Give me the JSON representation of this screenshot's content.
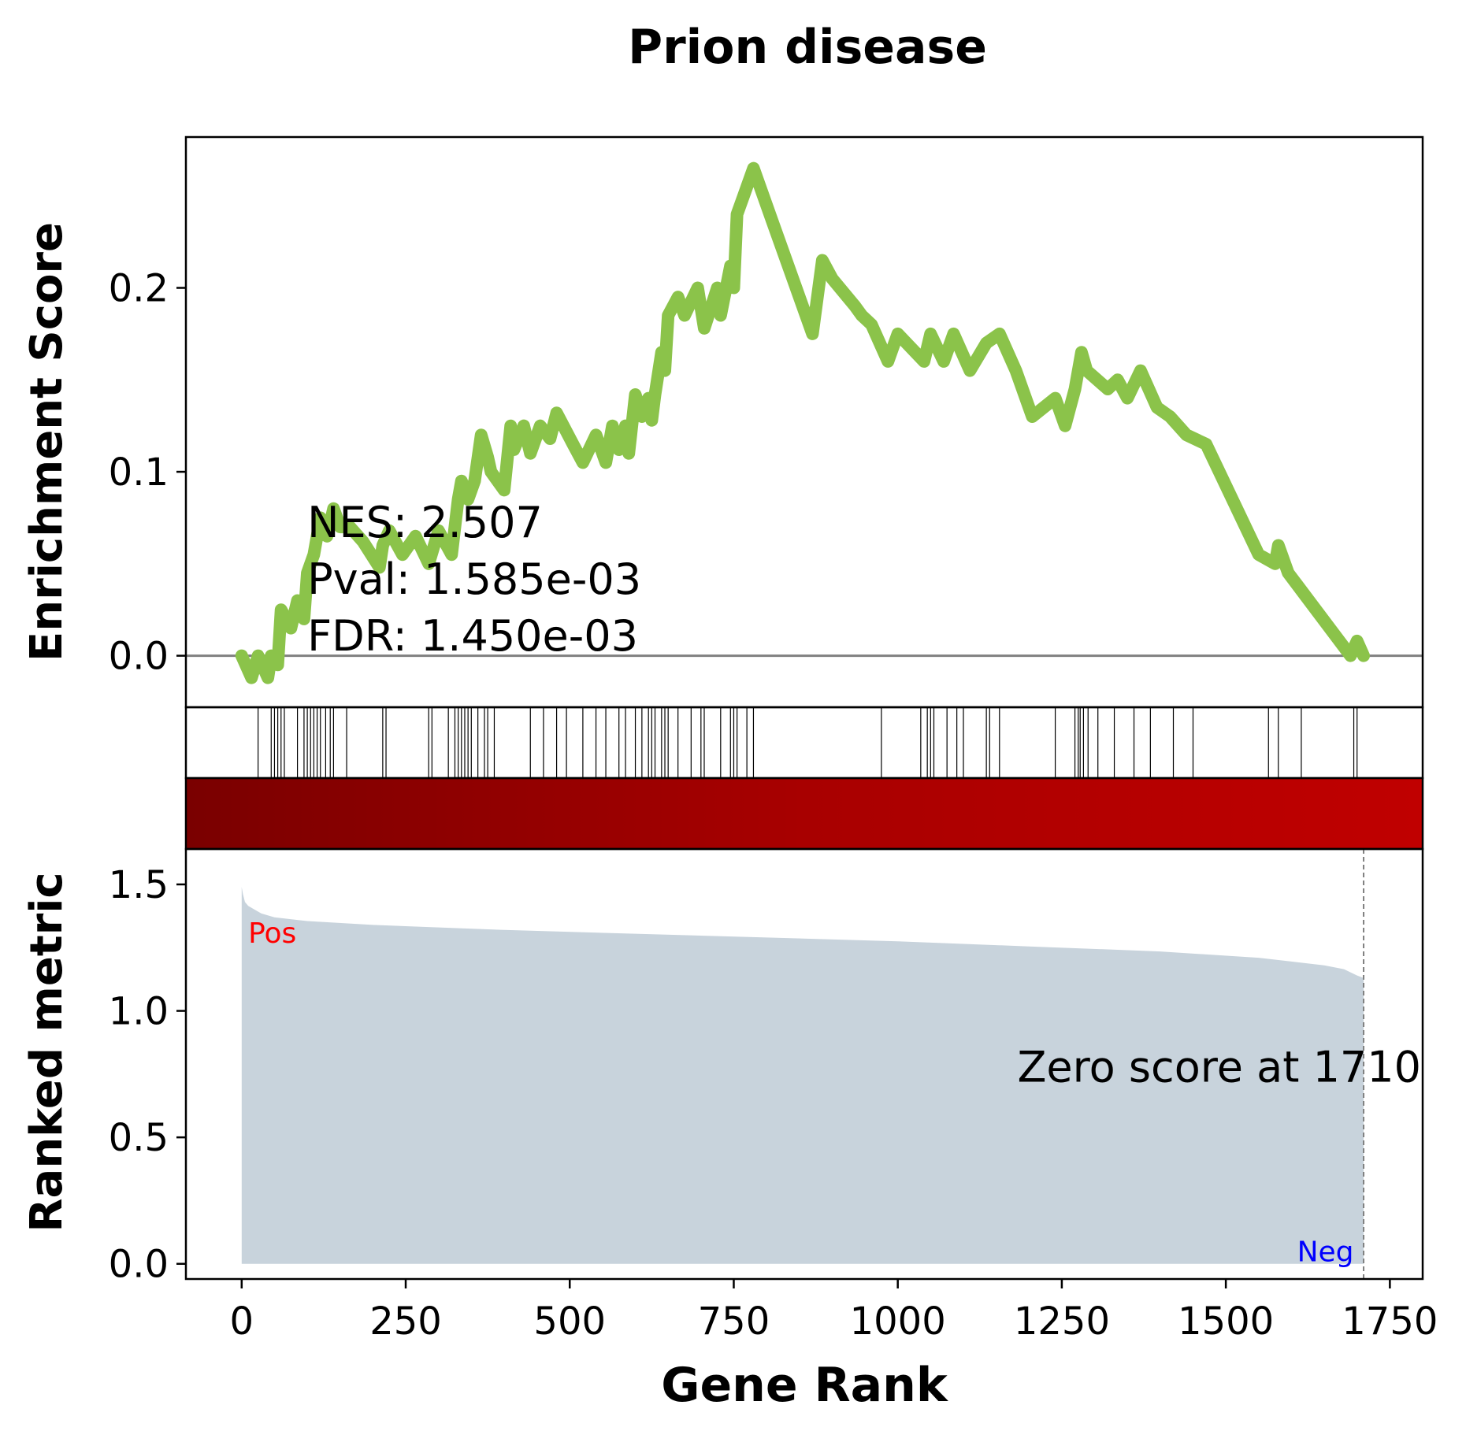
{
  "chart_data": {
    "type": "line",
    "title": "Prion disease",
    "xlabel": "Gene Rank",
    "xlim": [
      -85,
      1800
    ],
    "xticks": [
      0,
      250,
      500,
      750,
      1000,
      1250,
      1500,
      1750
    ],
    "top_panel": {
      "ylabel": "Enrichment Score",
      "ylim": [
        -0.028,
        0.282
      ],
      "yticks": [
        0.0,
        0.1,
        0.2
      ],
      "ytick_labels": [
        "0.0",
        "0.1",
        "0.2"
      ],
      "line_color": "#8bc34a",
      "zero_line_color": "#808080",
      "series": {
        "x": [
          0,
          15,
          25,
          40,
          45,
          55,
          60,
          75,
          85,
          95,
          100,
          110,
          120,
          130,
          140,
          150,
          165,
          185,
          210,
          215,
          225,
          245,
          265,
          285,
          300,
          320,
          330,
          335,
          345,
          355,
          365,
          375,
          380,
          400,
          410,
          415,
          430,
          440,
          455,
          470,
          480,
          505,
          520,
          540,
          555,
          565,
          575,
          585,
          590,
          600,
          610,
          620,
          625,
          630,
          640,
          645,
          650,
          665,
          675,
          695,
          705,
          725,
          730,
          745,
          750,
          755,
          765,
          780,
          810,
          840,
          870,
          885,
          900,
          935,
          945,
          960,
          985,
          1000,
          1040,
          1050,
          1070,
          1085,
          1110,
          1135,
          1155,
          1180,
          1205,
          1240,
          1255,
          1270,
          1280,
          1288,
          1320,
          1335,
          1350,
          1370,
          1395,
          1415,
          1440,
          1470,
          1550,
          1575,
          1580,
          1595,
          1690,
          1700,
          1710
        ],
        "y": [
          0.0,
          -0.012,
          0.0,
          -0.012,
          0.0,
          -0.005,
          0.025,
          0.015,
          0.03,
          0.02,
          0.045,
          0.055,
          0.075,
          0.065,
          0.08,
          0.07,
          0.07,
          0.062,
          0.048,
          0.06,
          0.068,
          0.055,
          0.065,
          0.05,
          0.068,
          0.055,
          0.085,
          0.095,
          0.085,
          0.095,
          0.12,
          0.108,
          0.1,
          0.09,
          0.125,
          0.112,
          0.125,
          0.11,
          0.125,
          0.118,
          0.132,
          0.115,
          0.105,
          0.12,
          0.105,
          0.125,
          0.112,
          0.125,
          0.11,
          0.142,
          0.13,
          0.14,
          0.128,
          0.142,
          0.165,
          0.155,
          0.185,
          0.195,
          0.185,
          0.2,
          0.178,
          0.2,
          0.185,
          0.212,
          0.2,
          0.24,
          0.25,
          0.265,
          0.235,
          0.205,
          0.175,
          0.215,
          0.205,
          0.19,
          0.185,
          0.18,
          0.16,
          0.175,
          0.16,
          0.175,
          0.16,
          0.175,
          0.155,
          0.17,
          0.175,
          0.155,
          0.13,
          0.14,
          0.125,
          0.145,
          0.165,
          0.155,
          0.145,
          0.15,
          0.14,
          0.155,
          0.135,
          0.13,
          0.12,
          0.115,
          0.055,
          0.05,
          0.06,
          0.045,
          0.0,
          0.008,
          0.0
        ]
      },
      "annotations": [
        "NES: 2.507",
        "Pval: 1.585e-03",
        "FDR: 1.450e-03"
      ]
    },
    "hit_panel": {
      "hits": [
        25,
        45,
        50,
        55,
        60,
        65,
        85,
        95,
        100,
        105,
        110,
        115,
        120,
        128,
        135,
        140,
        160,
        215,
        220,
        285,
        290,
        315,
        325,
        330,
        335,
        340,
        345,
        350,
        360,
        370,
        375,
        385,
        440,
        460,
        480,
        495,
        520,
        540,
        555,
        575,
        585,
        600,
        610,
        620,
        625,
        630,
        640,
        645,
        650,
        665,
        685,
        700,
        705,
        730,
        745,
        750,
        755,
        770,
        780,
        975,
        1035,
        1045,
        1050,
        1055,
        1075,
        1090,
        1100,
        1135,
        1140,
        1155,
        1240,
        1270,
        1275,
        1278,
        1283,
        1290,
        1305,
        1330,
        1360,
        1385,
        1420,
        1450,
        1565,
        1580,
        1615,
        1695,
        1700
      ]
    },
    "gradient_bar": {
      "colors": [
        "#7a0000",
        "#a80000",
        "#c00000"
      ]
    },
    "bottom_panel": {
      "ylabel": "Ranked metric",
      "ylim": [
        -0.06,
        1.64
      ],
      "yticks": [
        0.0,
        0.5,
        1.0,
        1.5
      ],
      "ytick_labels": [
        "0.0",
        "0.5",
        "1.0",
        "1.5"
      ],
      "fill_color": "#c8d3dc",
      "series": {
        "x": [
          0,
          2,
          5,
          10,
          20,
          30,
          50,
          100,
          200,
          400,
          600,
          800,
          1000,
          1200,
          1400,
          1550,
          1600,
          1650,
          1680,
          1700,
          1710
        ],
        "y": [
          1.49,
          1.46,
          1.43,
          1.415,
          1.4,
          1.385,
          1.37,
          1.355,
          1.34,
          1.32,
          1.305,
          1.29,
          1.275,
          1.255,
          1.235,
          1.21,
          1.195,
          1.18,
          1.165,
          1.14,
          1.13
        ]
      },
      "zero_score_x": 1710,
      "zero_score_label": "Zero score at 1710",
      "pos_label": "Pos",
      "neg_label": "Neg",
      "pos_color": "#ff0000",
      "neg_color": "#0000ff"
    }
  }
}
